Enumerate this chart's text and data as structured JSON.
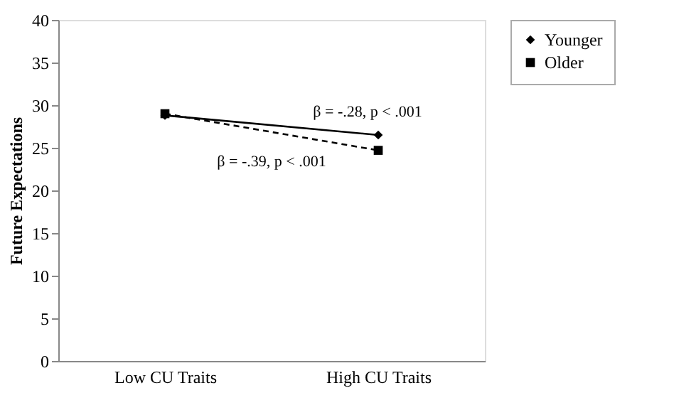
{
  "chart_data": {
    "type": "line",
    "ylabel": "Future Expectations",
    "categories": [
      "Low CU Traits",
      "High CU Traits"
    ],
    "series": [
      {
        "name": "Younger",
        "color": "#000000",
        "values": [
          28.8,
          26.5
        ],
        "marker": "diamond",
        "line_style": "solid"
      },
      {
        "name": "Older",
        "color": "#000000",
        "values": [
          29.0,
          24.7
        ],
        "marker": "square",
        "line_style": "dashed"
      }
    ],
    "annotations": [
      "β = -.28, p < .001",
      "β = -.39, p < .001"
    ],
    "ylim": [
      0,
      40
    ],
    "yticks": [
      0,
      5,
      10,
      15,
      20,
      25,
      30,
      35,
      40
    ],
    "grid": false,
    "legend": "right"
  }
}
